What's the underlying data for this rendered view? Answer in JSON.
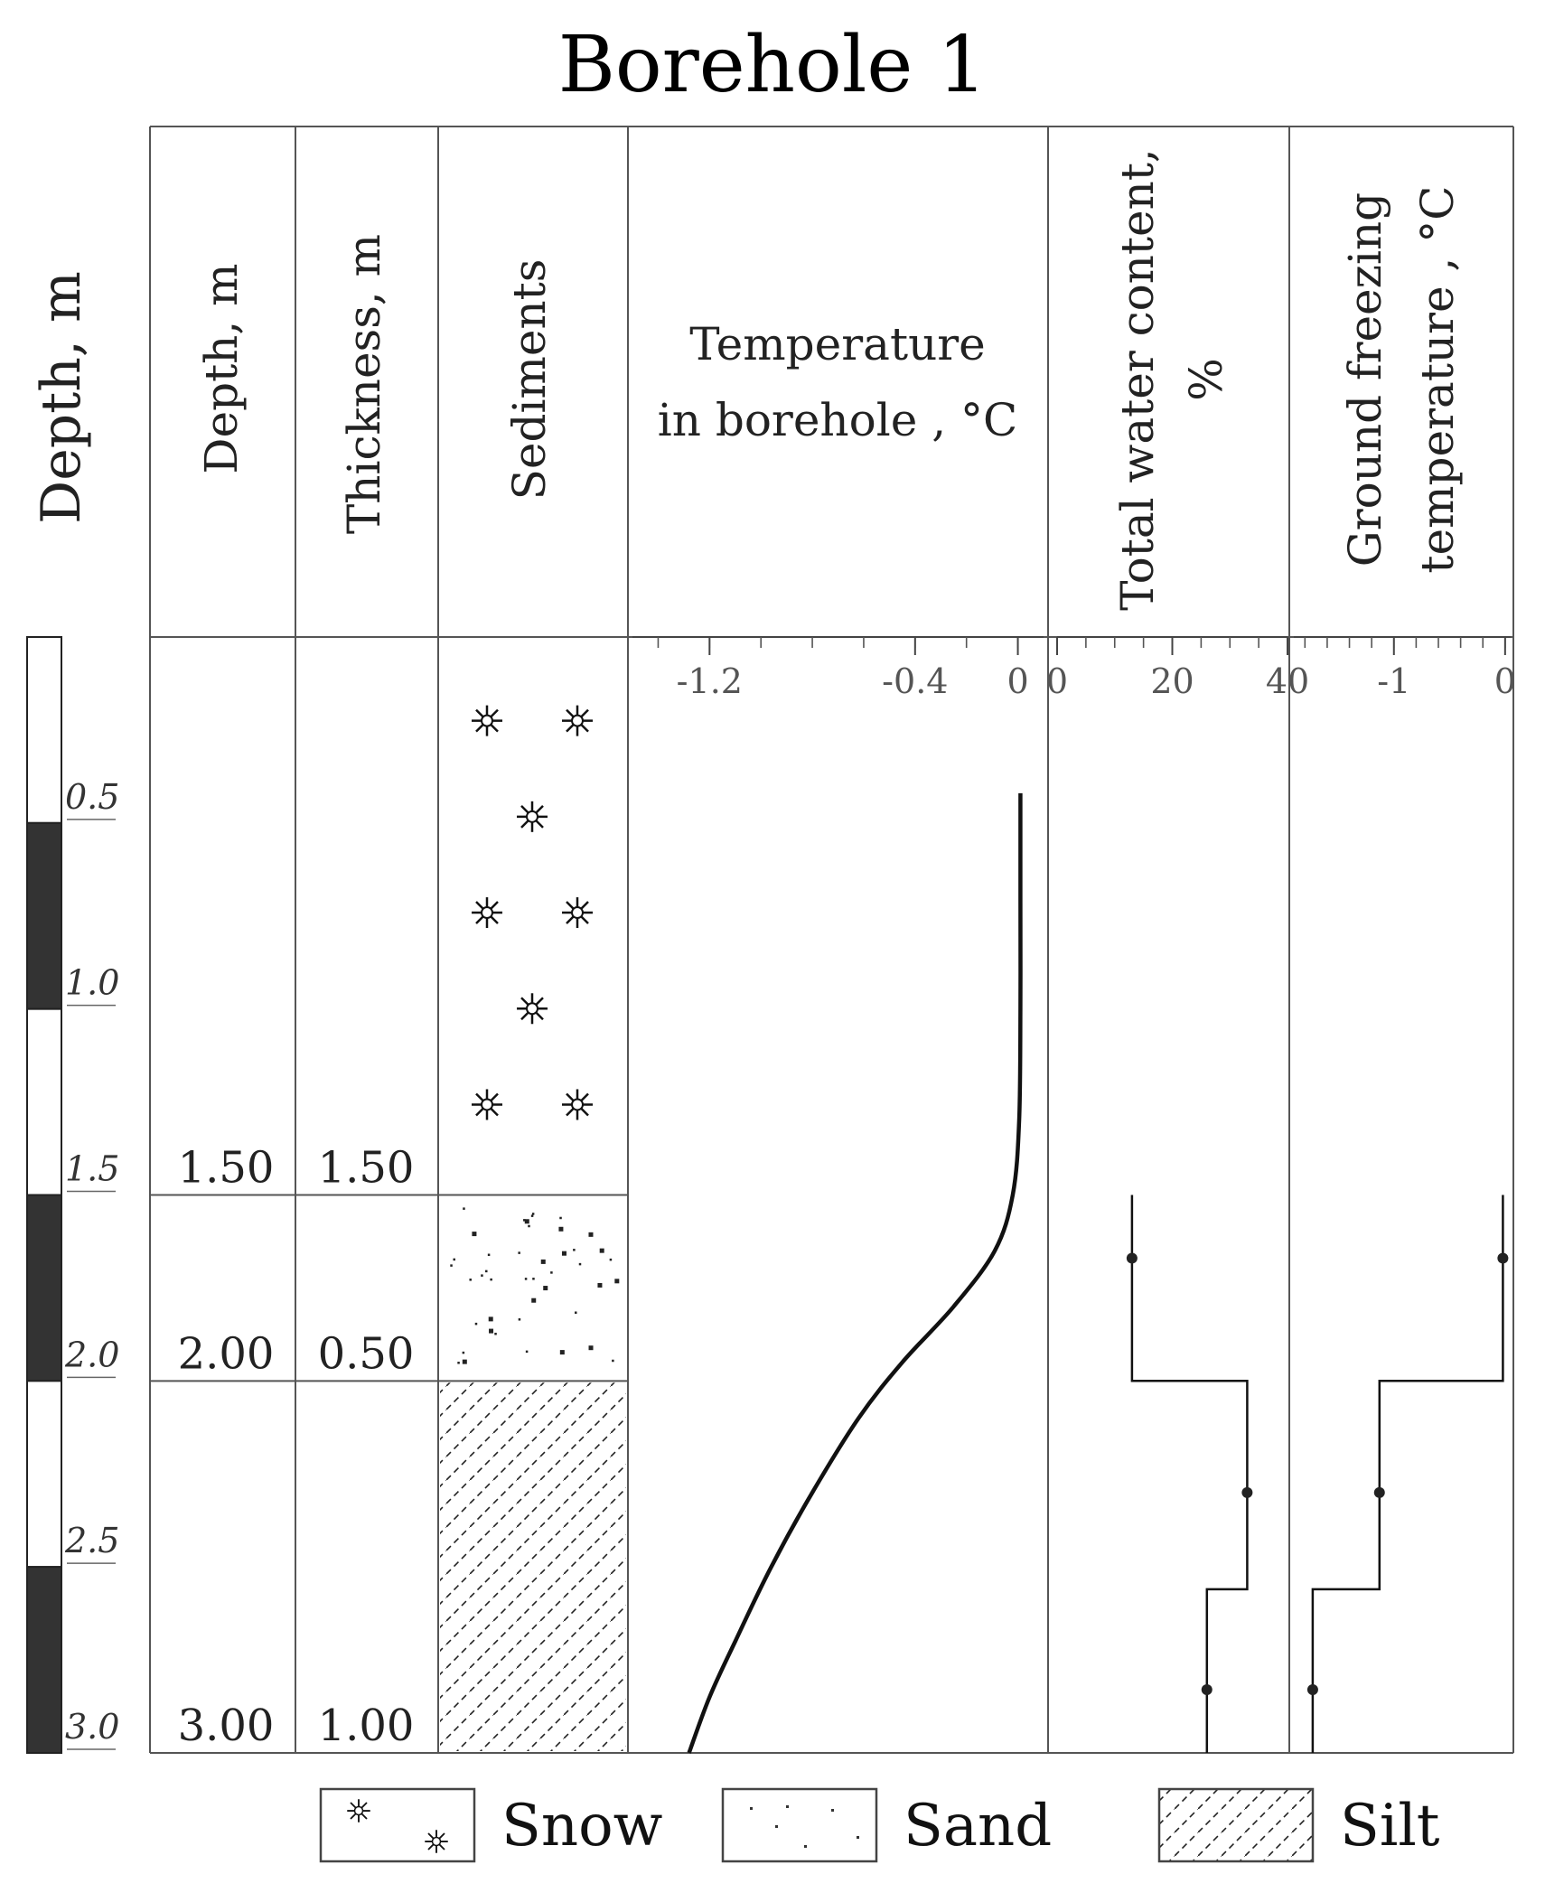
{
  "title": "Borehole 1",
  "columns": {
    "depth_axis": "Depth, m",
    "depth": "Depth, m",
    "thickness": "Thickness, m",
    "sediments": "Sediments",
    "temperature": [
      "Temperature",
      "in borehole , °C"
    ],
    "water": [
      "Total water content,",
      "%"
    ],
    "freezing": [
      "Ground freezing",
      "temperature , °C"
    ]
  },
  "depth_scale": {
    "labels": [
      "0.5",
      "1.0",
      "1.5",
      "2.0",
      "2.5",
      "3.0"
    ],
    "max_depth": 3.0
  },
  "layers": [
    {
      "sediment": "Snow",
      "bottom": 1.5,
      "depth_label": "1.50",
      "thickness_label": "1.50"
    },
    {
      "sediment": "Sand",
      "bottom": 2.0,
      "depth_label": "2.00",
      "thickness_label": "0.50"
    },
    {
      "sediment": "Silt",
      "bottom": 3.0,
      "depth_label": "3.00",
      "thickness_label": "1.00"
    }
  ],
  "chart_data": [
    {
      "type": "line",
      "title": "Temperature in borehole , °C",
      "x_ticks": [
        "-1.2",
        "-0.4",
        "0"
      ],
      "xlim": [
        -1.5,
        0.1
      ],
      "ylim": [
        0,
        3.0
      ],
      "series": [
        {
          "x": [
            0.01,
            0.01,
            0.01,
            0.005,
            -0.02,
            -0.09,
            -0.25,
            -0.45,
            -0.62,
            -0.8,
            -0.96,
            -1.1,
            -1.2,
            -1.28
          ],
          "y": [
            0.42,
            0.7,
            1.0,
            1.3,
            1.5,
            1.65,
            1.8,
            1.95,
            2.1,
            2.3,
            2.5,
            2.7,
            2.85,
            3.0
          ]
        }
      ]
    },
    {
      "type": "line",
      "title": "Total water content, %",
      "x_ticks": [
        "0",
        "20",
        "40"
      ],
      "xlim": [
        0,
        40
      ],
      "ylim": [
        0,
        3.0
      ],
      "series": [
        {
          "x": [
            13,
            13,
            33,
            33,
            26,
            26
          ],
          "y": [
            1.5,
            2.0,
            2.0,
            2.56,
            2.56,
            3.0
          ]
        }
      ],
      "points": [
        {
          "x": 13,
          "y": 1.67
        },
        {
          "x": 33,
          "y": 2.3
        },
        {
          "x": 26,
          "y": 2.83
        }
      ]
    },
    {
      "type": "line",
      "title": "Ground freezing temperature , °C",
      "x_ticks": [
        "-1",
        "0"
      ],
      "xlim": [
        -1.9,
        0.05
      ],
      "ylim": [
        0,
        3.0
      ],
      "series": [
        {
          "x": [
            -0.02,
            -0.02,
            -1.13,
            -1.13,
            -1.73,
            -1.73
          ],
          "y": [
            1.5,
            2.0,
            2.0,
            2.56,
            2.56,
            3.0
          ]
        }
      ],
      "points": [
        {
          "x": -0.02,
          "y": 1.67
        },
        {
          "x": -1.13,
          "y": 2.3
        },
        {
          "x": -1.73,
          "y": 2.83
        }
      ]
    }
  ],
  "legend": [
    {
      "label": "Snow"
    },
    {
      "label": "Sand"
    },
    {
      "label": "Silt"
    }
  ]
}
